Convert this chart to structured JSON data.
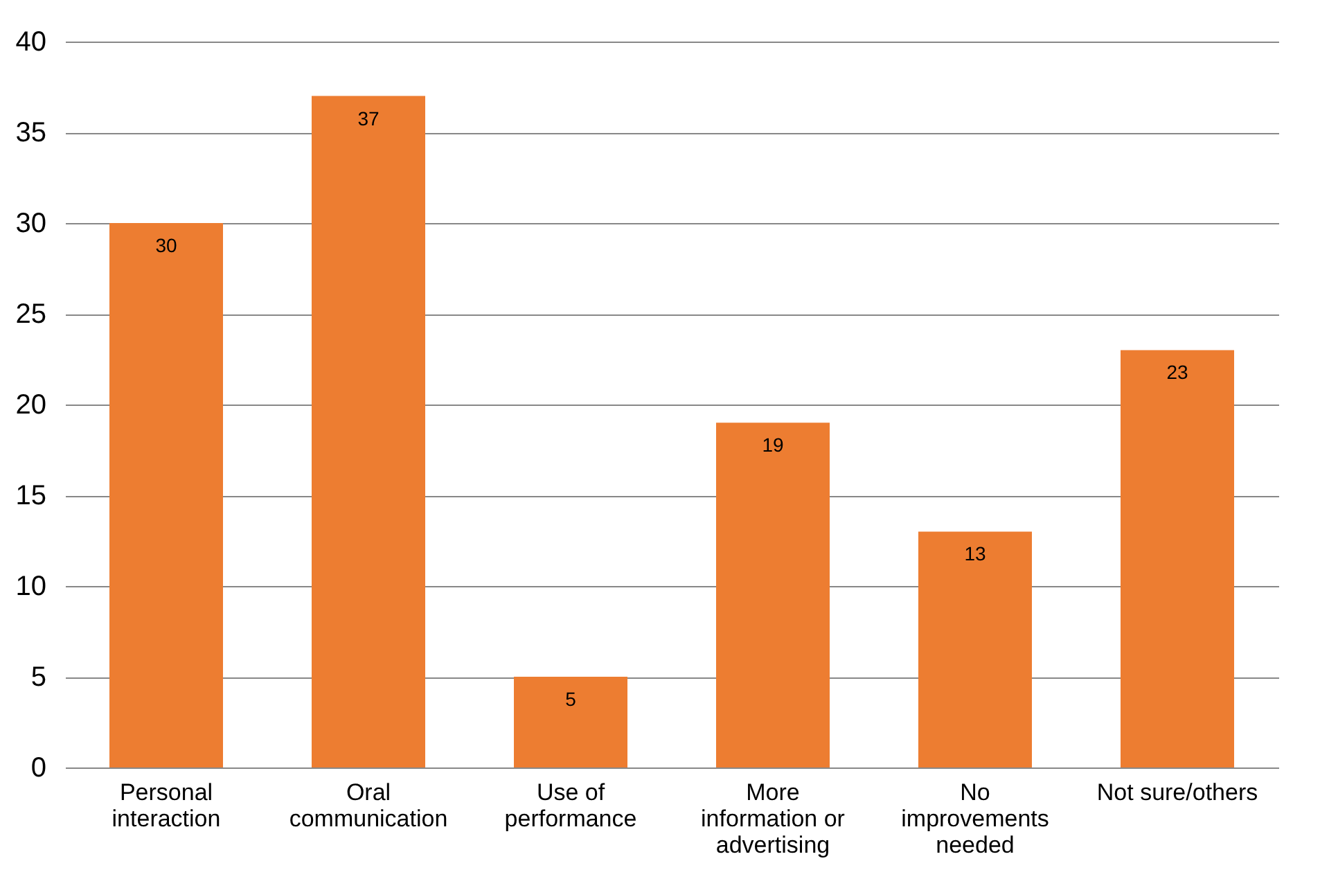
{
  "chart_data": {
    "type": "bar",
    "categories": [
      "Personal interaction",
      "Oral communication",
      "Use of performance",
      "More information or advertising",
      "No improvements needed",
      "Not sure/others"
    ],
    "values": [
      30,
      37,
      5,
      19,
      13,
      23
    ],
    "data_labels": true,
    "color": "#ed7d31",
    "ylim": [
      0,
      40
    ],
    "yticks": [
      0,
      5,
      10,
      15,
      20,
      25,
      30,
      35,
      40
    ],
    "grid": "y"
  }
}
